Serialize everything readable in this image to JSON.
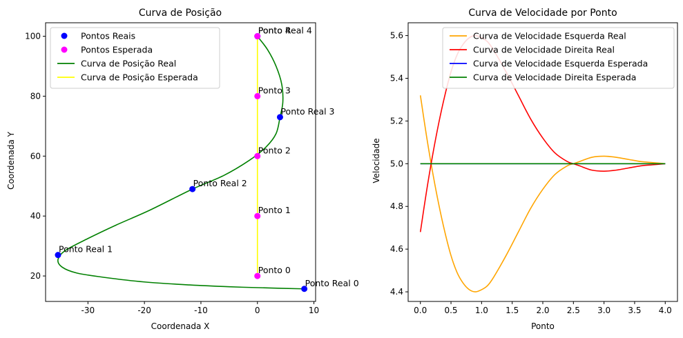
{
  "chart_data": [
    {
      "type": "scatter",
      "title": "Curva de Posição",
      "xlabel": "Coordenada X",
      "ylabel": "Coordenada Y",
      "xlim": [
        -37.5,
        10.3
      ],
      "ylim": [
        11.5,
        104.5
      ],
      "xticks": [
        -30,
        -20,
        -10,
        0,
        10
      ],
      "yticks": [
        20,
        40,
        60,
        80,
        100
      ],
      "grid": false,
      "legend": "top-left",
      "series": [
        {
          "name": "Pontos Reais",
          "kind": "scatter",
          "color": "#0000ff",
          "points": [
            {
              "x": 8.3,
              "y": 15.7,
              "label": "Ponto Real 0"
            },
            {
              "x": -35.3,
              "y": 27.0,
              "label": "Ponto Real 1"
            },
            {
              "x": -11.5,
              "y": 49.0,
              "label": "Ponto Real 2"
            },
            {
              "x": 4.0,
              "y": 73.0,
              "label": "Ponto Real 3"
            },
            {
              "x": 0.0,
              "y": 100.0,
              "label": "Ponto Real 4"
            }
          ]
        },
        {
          "name": "Pontos Esperada",
          "kind": "scatter",
          "color": "#ff00ff",
          "points": [
            {
              "x": 0,
              "y": 20,
              "label": "Ponto 0"
            },
            {
              "x": 0,
              "y": 40,
              "label": "Ponto 1"
            },
            {
              "x": 0,
              "y": 60,
              "label": "Ponto 2"
            },
            {
              "x": 0,
              "y": 80,
              "label": "Ponto 3"
            },
            {
              "x": 0,
              "y": 100,
              "label": "Ponto 4"
            }
          ]
        },
        {
          "name": "Curva de Posição Real",
          "kind": "line",
          "color": "#008000",
          "points": [
            {
              "x": 8.3,
              "y": 15.7
            },
            {
              "x": 2.0,
              "y": 16.0
            },
            {
              "x": -5.0,
              "y": 16.4
            },
            {
              "x": -12.0,
              "y": 17.0
            },
            {
              "x": -20.0,
              "y": 18.0
            },
            {
              "x": -27.0,
              "y": 19.5
            },
            {
              "x": -32.0,
              "y": 21.0
            },
            {
              "x": -34.6,
              "y": 23.0
            },
            {
              "x": -35.3,
              "y": 25.5
            },
            {
              "x": -34.0,
              "y": 28.5
            },
            {
              "x": -30.0,
              "y": 32.5
            },
            {
              "x": -25.0,
              "y": 37.0
            },
            {
              "x": -19.0,
              "y": 42.0
            },
            {
              "x": -11.5,
              "y": 49.0
            },
            {
              "x": -6.0,
              "y": 53.5
            },
            {
              "x": -1.5,
              "y": 58.5
            },
            {
              "x": 1.5,
              "y": 63.0
            },
            {
              "x": 3.3,
              "y": 67.5
            },
            {
              "x": 4.0,
              "y": 73.0
            },
            {
              "x": 4.5,
              "y": 78.0
            },
            {
              "x": 4.3,
              "y": 84.0
            },
            {
              "x": 3.3,
              "y": 90.0
            },
            {
              "x": 1.8,
              "y": 95.5
            },
            {
              "x": 0.0,
              "y": 100.0
            }
          ]
        },
        {
          "name": "Curva de Posição Esperada",
          "kind": "line",
          "color": "#ffff00",
          "points": [
            {
              "x": 0,
              "y": 20
            },
            {
              "x": 0,
              "y": 40
            },
            {
              "x": 0,
              "y": 60
            },
            {
              "x": 0,
              "y": 80
            },
            {
              "x": 0,
              "y": 100
            }
          ]
        }
      ]
    },
    {
      "type": "line",
      "title": "Curva de Velocidade por Ponto",
      "xlabel": "Ponto",
      "ylabel": "Velocidade",
      "xlim": [
        -0.2,
        4.2
      ],
      "ylim": [
        4.355,
        5.66
      ],
      "xticks": [
        "0.0",
        "0.5",
        "1.0",
        "1.5",
        "2.0",
        "2.5",
        "3.0",
        "3.5",
        "4.0"
      ],
      "yticks": [
        "4.4",
        "4.6",
        "4.8",
        "5.0",
        "5.2",
        "5.4",
        "5.6"
      ],
      "grid": false,
      "legend": "top-right",
      "series": [
        {
          "name": "Curva de Velocidade Esquerda Real",
          "color": "#ffa500",
          "x": [
            0,
            0.1,
            0.2,
            0.3,
            0.4,
            0.5,
            0.6,
            0.7,
            0.8,
            0.9,
            1.0,
            1.1,
            1.2,
            1.4,
            1.6,
            1.8,
            2.0,
            2.2,
            2.4,
            2.5,
            2.6,
            2.8,
            3.0,
            3.2,
            3.4,
            3.6,
            3.8,
            4.0
          ],
          "y": [
            5.32,
            5.13,
            4.96,
            4.81,
            4.68,
            4.57,
            4.49,
            4.44,
            4.41,
            4.4,
            4.41,
            4.43,
            4.47,
            4.57,
            4.68,
            4.79,
            4.88,
            4.95,
            4.99,
            5.0,
            5.01,
            5.03,
            5.035,
            5.03,
            5.02,
            5.01,
            5.005,
            5.0
          ]
        },
        {
          "name": "Curva de Velocidade Direita Real",
          "color": "#ff0000",
          "x": [
            0,
            0.1,
            0.2,
            0.3,
            0.4,
            0.5,
            0.6,
            0.7,
            0.8,
            0.9,
            1.0,
            1.1,
            1.2,
            1.4,
            1.6,
            1.8,
            2.0,
            2.2,
            2.4,
            2.5,
            2.6,
            2.8,
            3.0,
            3.2,
            3.4,
            3.6,
            3.8,
            4.0
          ],
          "y": [
            4.68,
            4.87,
            5.04,
            5.19,
            5.32,
            5.43,
            5.51,
            5.56,
            5.59,
            5.6,
            5.59,
            5.57,
            5.53,
            5.43,
            5.32,
            5.21,
            5.12,
            5.05,
            5.01,
            5.0,
            4.99,
            4.97,
            4.965,
            4.97,
            4.98,
            4.99,
            4.995,
            5.0
          ]
        },
        {
          "name": "Curva de Velocidade Esquerda Esperada",
          "color": "#0000ff",
          "x": [
            0,
            4
          ],
          "y": [
            5.0,
            5.0
          ]
        },
        {
          "name": "Curva de Velocidade Direita Esperada",
          "color": "#008000",
          "x": [
            0,
            4
          ],
          "y": [
            5.0,
            5.0
          ]
        }
      ]
    }
  ]
}
